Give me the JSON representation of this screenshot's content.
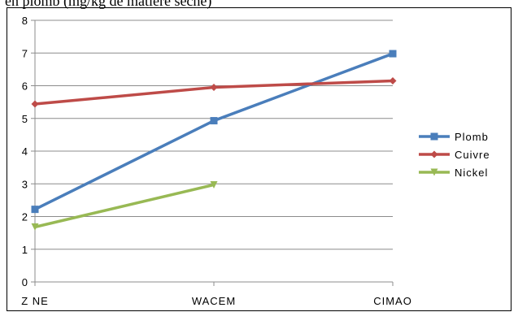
{
  "header_text": "en plomb (mg/kg de matière sèche)",
  "chart_data": {
    "type": "line",
    "title": "",
    "xlabel": "",
    "ylabel": "",
    "categories": [
      "Z NE",
      "WACEM",
      "CIMAO"
    ],
    "ylim": [
      0,
      8
    ],
    "yticks": [
      "0",
      "1",
      "2",
      "3",
      "4",
      "5",
      "6",
      "7",
      "8"
    ],
    "grid": true,
    "legend_position": "right",
    "series": [
      {
        "name": "Plomb",
        "values": [
          2.22,
          4.93,
          6.98
        ],
        "color": "#4a7ebb",
        "marker": "square"
      },
      {
        "name": "Cuivre",
        "values": [
          5.44,
          5.95,
          6.15
        ],
        "color": "#be4b48",
        "marker": "diamond"
      },
      {
        "name": "Nickel",
        "values": [
          1.68,
          2.97,
          null
        ],
        "color": "#98b954",
        "marker": "triangle-down"
      }
    ]
  }
}
